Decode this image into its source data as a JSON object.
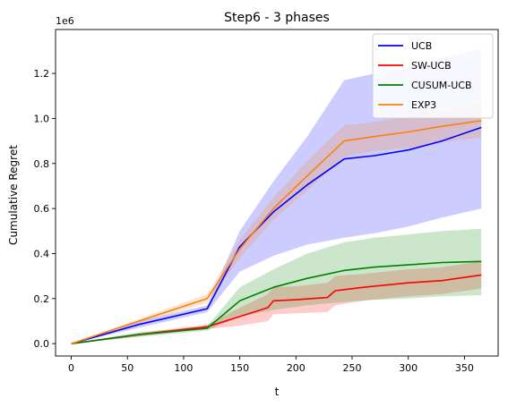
{
  "chart_data": {
    "type": "line",
    "title": "Step6 - 3 phases",
    "xlabel": "t",
    "ylabel": "Cumulative Regret",
    "y_offset_label": "1e6",
    "xlim": [
      -14,
      380
    ],
    "ylim": [
      -0.055,
      1.395
    ],
    "x_ticks": [
      0,
      50,
      100,
      150,
      200,
      250,
      300,
      350
    ],
    "y_ticks": [
      0.0,
      0.2,
      0.4,
      0.6,
      0.8,
      1.0,
      1.2
    ],
    "y_tick_labels": [
      "0.0",
      "0.2",
      "0.4",
      "0.6",
      "0.8",
      "1.0",
      "1.2"
    ],
    "legend_position": "top-right",
    "grid": false,
    "series": [
      {
        "name": "UCB",
        "color": "#0000ff",
        "x": [
          0,
          60,
          121,
          150,
          180,
          210,
          243,
          270,
          300,
          330,
          365
        ],
        "mean": [
          0.0,
          0.085,
          0.155,
          0.43,
          0.585,
          0.705,
          0.82,
          0.835,
          0.86,
          0.9,
          0.96
        ],
        "lower": [
          0.0,
          0.07,
          0.14,
          0.32,
          0.39,
          0.44,
          0.47,
          0.49,
          0.52,
          0.56,
          0.6
        ],
        "upper": [
          0.0,
          0.1,
          0.17,
          0.5,
          0.72,
          0.92,
          1.17,
          1.2,
          1.23,
          1.27,
          1.31
        ]
      },
      {
        "name": "SW-UCB",
        "color": "#ff0000",
        "x": [
          0,
          60,
          121,
          150,
          175,
          180,
          200,
          228,
          235,
          260,
          300,
          330,
          365
        ],
        "mean": [
          0.0,
          0.04,
          0.075,
          0.12,
          0.16,
          0.19,
          0.195,
          0.205,
          0.235,
          0.25,
          0.27,
          0.28,
          0.305
        ],
        "lower": [
          0.0,
          0.032,
          0.065,
          0.08,
          0.1,
          0.13,
          0.135,
          0.14,
          0.17,
          0.19,
          0.21,
          0.22,
          0.245
        ],
        "upper": [
          0.0,
          0.048,
          0.085,
          0.16,
          0.22,
          0.25,
          0.255,
          0.27,
          0.3,
          0.31,
          0.33,
          0.34,
          0.365
        ]
      },
      {
        "name": "CUSUM-UCB",
        "color": "#008000",
        "x": [
          0,
          60,
          121,
          150,
          180,
          210,
          243,
          270,
          300,
          330,
          365
        ],
        "mean": [
          0.0,
          0.04,
          0.068,
          0.19,
          0.25,
          0.29,
          0.325,
          0.34,
          0.35,
          0.36,
          0.365
        ],
        "lower": [
          0.0,
          0.03,
          0.058,
          0.12,
          0.15,
          0.17,
          0.185,
          0.195,
          0.2,
          0.21,
          0.215
        ],
        "upper": [
          0.0,
          0.05,
          0.078,
          0.25,
          0.33,
          0.4,
          0.45,
          0.47,
          0.485,
          0.5,
          0.51
        ]
      },
      {
        "name": "EXP3",
        "color": "#ff7f0e",
        "x": [
          0,
          60,
          121,
          150,
          180,
          210,
          243,
          270,
          300,
          330,
          365
        ],
        "mean": [
          0.0,
          0.1,
          0.2,
          0.42,
          0.6,
          0.745,
          0.9,
          0.92,
          0.94,
          0.965,
          0.99
        ],
        "lower": [
          0.0,
          0.09,
          0.18,
          0.38,
          0.55,
          0.68,
          0.83,
          0.855,
          0.87,
          0.895,
          0.915
        ],
        "upper": [
          0.0,
          0.11,
          0.22,
          0.46,
          0.65,
          0.81,
          0.97,
          0.985,
          1.01,
          1.035,
          1.065
        ]
      }
    ]
  }
}
